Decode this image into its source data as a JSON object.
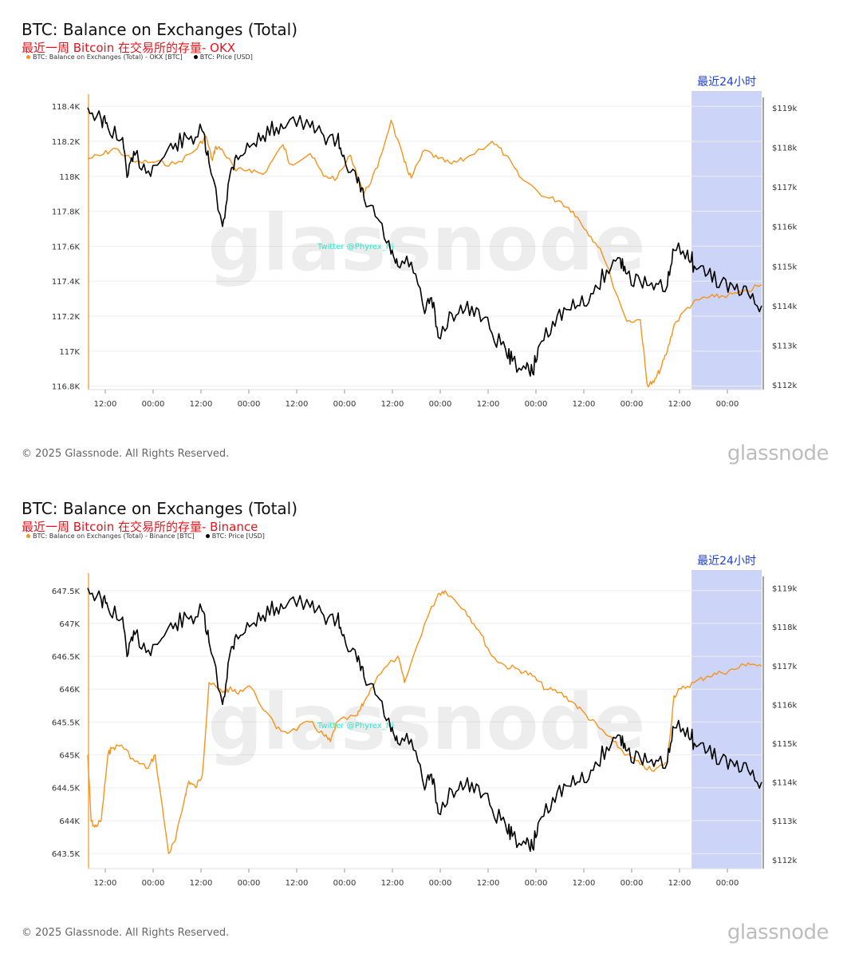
{
  "charts": [
    {
      "title": "BTC: Balance on Exchanges (Total)",
      "subtitle": "最近一周 Bitcoin 在交易所的存量- OKX",
      "legend": [
        {
          "label": "BTC: Balance on Exchanges (Total) - OKX [BTC]",
          "color": "#f7931a"
        },
        {
          "label": "BTC: Price [USD]",
          "color": "#000000"
        }
      ],
      "highlight_label": "最近24小时",
      "watermark": "glassnode",
      "twitter_watermark": "Twitter @Phyrex_Ni",
      "copyright": "© 2025 Glassnode. All Rights Reserved.",
      "logo": "glassnode"
    },
    {
      "title": "BTC: Balance on Exchanges (Total)",
      "subtitle": "最近一周 Bitcoin 在交易所的存量- Binance",
      "legend": [
        {
          "label": "BTC: Balance on Exchanges (Total) - Binance [BTC]",
          "color": "#f7931a"
        },
        {
          "label": "BTC: Price [USD]",
          "color": "#000000"
        }
      ],
      "highlight_label": "最近24小时",
      "watermark": "glassnode",
      "twitter_watermark": "Twitter @Phyrex_Ni",
      "copyright": "© 2025 Glassnode. All Rights Reserved.",
      "logo": "glassnode"
    }
  ],
  "chart_data": [
    {
      "type": "line",
      "title": "BTC: Balance on Exchanges (Total)",
      "x_ticks": [
        "12:00",
        "00:00",
        "12:00",
        "00:00",
        "12:00",
        "00:00",
        "12:00",
        "00:00",
        "12:00",
        "00:00",
        "12:00",
        "00:00",
        "12:00",
        "00:00"
      ],
      "y_left_ticks": [
        "118.4K",
        "118.2K",
        "118K",
        "117.8K",
        "117.6K",
        "117.4K",
        "117.2K",
        "117K",
        "116.8K"
      ],
      "y_right_ticks": [
        "$119k",
        "$118k",
        "$117k",
        "$116k",
        "$115k",
        "$114k",
        "$113k",
        "$112k"
      ],
      "y_left_range": [
        116780,
        118460
      ],
      "y_right_range": [
        111880,
        119300
      ],
      "highlight_range": [
        0.896,
        1.0
      ],
      "series": [
        {
          "name": "BTC: Balance on Exchanges (Total) - OKX [BTC]",
          "axis": "left",
          "color": "#f7931a",
          "x": [
            0,
            0.02,
            0.04,
            0.07,
            0.1,
            0.13,
            0.16,
            0.175,
            0.185,
            0.19,
            0.2,
            0.22,
            0.24,
            0.26,
            0.29,
            0.3,
            0.33,
            0.35,
            0.37,
            0.39,
            0.41,
            0.43,
            0.45,
            0.47,
            0.48,
            0.5,
            0.52,
            0.54,
            0.56,
            0.6,
            0.62,
            0.64,
            0.68,
            0.7,
            0.72,
            0.74,
            0.76,
            0.8,
            0.82,
            0.83,
            0.84,
            0.85,
            0.86,
            0.87,
            0.89,
            0.91,
            0.93,
            0.95,
            0.97,
            1.0
          ],
          "y": [
            118100,
            118120,
            118160,
            118080,
            118080,
            118070,
            118150,
            118230,
            118090,
            118170,
            118150,
            118030,
            118040,
            118010,
            118180,
            118070,
            118130,
            118000,
            117990,
            118120,
            117900,
            118050,
            118320,
            118080,
            117990,
            118150,
            118100,
            118070,
            118100,
            118200,
            118120,
            118000,
            117880,
            117860,
            117800,
            117690,
            117590,
            117170,
            117180,
            116810,
            116820,
            116900,
            117000,
            117150,
            117250,
            117300,
            117310,
            117320,
            117330,
            117380
          ]
        },
        {
          "name": "BTC: Price [USD]",
          "axis": "right",
          "color": "#000000",
          "x": [
            0,
            0.02,
            0.03,
            0.05,
            0.06,
            0.07,
            0.09,
            0.11,
            0.13,
            0.15,
            0.17,
            0.18,
            0.2,
            0.21,
            0.22,
            0.24,
            0.26,
            0.28,
            0.3,
            0.33,
            0.35,
            0.37,
            0.38,
            0.4,
            0.41,
            0.43,
            0.45,
            0.46,
            0.48,
            0.5,
            0.51,
            0.52,
            0.54,
            0.56,
            0.58,
            0.6,
            0.62,
            0.63,
            0.65,
            0.66,
            0.67,
            0.69,
            0.71,
            0.73,
            0.75,
            0.77,
            0.79,
            0.8,
            0.82,
            0.84,
            0.86,
            0.87,
            0.89,
            0.9,
            0.92,
            0.94,
            0.96,
            0.98,
            1.0
          ],
          "y": [
            119000,
            118700,
            118500,
            118200,
            117300,
            117800,
            117400,
            117700,
            118100,
            118200,
            118400,
            117600,
            116000,
            117200,
            117800,
            118000,
            118300,
            118500,
            118700,
            118500,
            118300,
            118200,
            117800,
            117100,
            116700,
            116200,
            115300,
            115000,
            115100,
            113800,
            114200,
            113200,
            113800,
            113900,
            113900,
            113300,
            112900,
            112600,
            112400,
            112300,
            113000,
            113600,
            113900,
            114000,
            114300,
            114900,
            115200,
            114800,
            114600,
            114400,
            114500,
            115400,
            115400,
            115000,
            114800,
            114600,
            114400,
            114300,
            114000
          ]
        }
      ]
    },
    {
      "type": "line",
      "title": "BTC: Balance on Exchanges (Total)",
      "x_ticks": [
        "12:00",
        "00:00",
        "12:00",
        "00:00",
        "12:00",
        "00:00",
        "12:00",
        "00:00",
        "12:00",
        "00:00",
        "12:00",
        "00:00",
        "12:00",
        "00:00"
      ],
      "y_left_ticks": [
        "647.5K",
        "647K",
        "646.5K",
        "646K",
        "645.5K",
        "645K",
        "644.5K",
        "644K",
        "643.5K"
      ],
      "y_right_ticks": [
        "$119k",
        "$118k",
        "$117k",
        "$116k",
        "$115k",
        "$114k",
        "$113k",
        "$112k"
      ],
      "y_left_range": [
        643270,
        647740
      ],
      "y_right_range": [
        111770,
        119340
      ],
      "highlight_range": [
        0.896,
        1.0
      ],
      "series": [
        {
          "name": "BTC: Balance on Exchanges (Total) - Binance [BTC]",
          "axis": "left",
          "color": "#f7931a",
          "x": [
            0,
            0.005,
            0.01,
            0.02,
            0.03,
            0.035,
            0.05,
            0.07,
            0.09,
            0.1,
            0.12,
            0.13,
            0.145,
            0.15,
            0.16,
            0.17,
            0.18,
            0.2,
            0.21,
            0.22,
            0.24,
            0.28,
            0.3,
            0.33,
            0.35,
            0.36,
            0.37,
            0.4,
            0.41,
            0.43,
            0.46,
            0.47,
            0.5,
            0.52,
            0.53,
            0.56,
            0.58,
            0.6,
            0.62,
            0.64,
            0.66,
            0.68,
            0.7,
            0.72,
            0.74,
            0.76,
            0.78,
            0.8,
            0.82,
            0.84,
            0.86,
            0.87,
            0.88,
            0.9,
            0.92,
            0.94,
            0.96,
            0.98,
            1.0
          ],
          "y": [
            645000,
            644000,
            643900,
            644000,
            645000,
            645100,
            645150,
            644900,
            644800,
            645000,
            643500,
            643700,
            644400,
            644600,
            644500,
            644700,
            646100,
            645950,
            646000,
            645950,
            646050,
            645400,
            645350,
            645500,
            645300,
            645200,
            645500,
            645600,
            645800,
            646200,
            646500,
            646100,
            647000,
            647450,
            647500,
            647200,
            646900,
            646500,
            646350,
            646300,
            646200,
            646000,
            645950,
            645800,
            645600,
            645400,
            645200,
            645000,
            644850,
            644750,
            644900,
            645900,
            646000,
            646100,
            646200,
            646250,
            646300,
            646400,
            646350
          ]
        },
        {
          "name": "BTC: Price [USD]",
          "axis": "right",
          "color": "#000000",
          "x": [
            0,
            0.02,
            0.03,
            0.05,
            0.06,
            0.07,
            0.09,
            0.11,
            0.13,
            0.15,
            0.17,
            0.18,
            0.2,
            0.21,
            0.22,
            0.24,
            0.26,
            0.28,
            0.3,
            0.33,
            0.35,
            0.37,
            0.38,
            0.4,
            0.41,
            0.43,
            0.45,
            0.46,
            0.48,
            0.5,
            0.51,
            0.52,
            0.54,
            0.56,
            0.58,
            0.6,
            0.62,
            0.63,
            0.65,
            0.66,
            0.67,
            0.69,
            0.71,
            0.73,
            0.75,
            0.77,
            0.79,
            0.8,
            0.82,
            0.84,
            0.86,
            0.87,
            0.89,
            0.9,
            0.92,
            0.94,
            0.96,
            0.98,
            1.0
          ],
          "y": [
            119000,
            118700,
            118500,
            118200,
            117300,
            117800,
            117400,
            117700,
            118100,
            118200,
            118400,
            117600,
            116000,
            117200,
            117800,
            118000,
            118300,
            118500,
            118700,
            118500,
            118300,
            118200,
            117800,
            117100,
            116700,
            116200,
            115300,
            115000,
            115100,
            113800,
            114200,
            113200,
            113800,
            113900,
            113900,
            113300,
            112900,
            112600,
            112400,
            112300,
            113000,
            113600,
            113900,
            114000,
            114300,
            114900,
            115200,
            114800,
            114600,
            114400,
            114500,
            115400,
            115400,
            115000,
            114800,
            114600,
            114400,
            114300,
            114000
          ]
        }
      ]
    }
  ]
}
